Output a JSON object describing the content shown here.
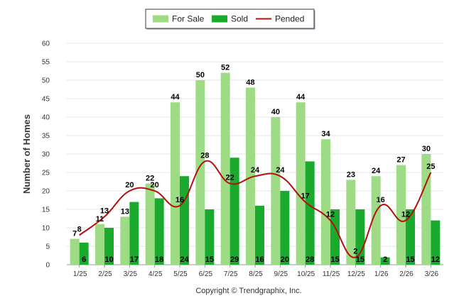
{
  "chart_data": {
    "type": "bar",
    "ylabel": "Number of Homes",
    "ylim": [
      0,
      60
    ],
    "yticks": [
      0,
      5,
      10,
      15,
      20,
      25,
      30,
      35,
      40,
      45,
      50,
      55,
      60
    ],
    "grid": true,
    "legend_position": "top-center",
    "categories": [
      "1/25",
      "2/25",
      "3/25",
      "4/25",
      "5/25",
      "6/25",
      "7/25",
      "8/25",
      "9/25",
      "10/25",
      "11/25",
      "12/25",
      "1/26",
      "2/26",
      "3/26"
    ],
    "series": [
      {
        "name": "For Sale",
        "kind": "bar",
        "color": "#9ddc84",
        "values": [
          7,
          11,
          13,
          22,
          44,
          50,
          52,
          48,
          40,
          44,
          34,
          23,
          24,
          27,
          30
        ]
      },
      {
        "name": "Sold",
        "kind": "bar",
        "color": "#1aab2e",
        "values": [
          6,
          10,
          17,
          18,
          24,
          15,
          29,
          16,
          20,
          28,
          15,
          15,
          2,
          15,
          12
        ]
      },
      {
        "name": "Pended",
        "kind": "line",
        "color": "#b31010",
        "values": [
          8,
          13,
          20,
          20,
          16,
          28,
          22,
          24,
          24,
          17,
          12,
          2,
          16,
          12,
          25
        ]
      }
    ]
  },
  "footer": {
    "copyright": "Copyright © Trendgraphix, Inc."
  }
}
